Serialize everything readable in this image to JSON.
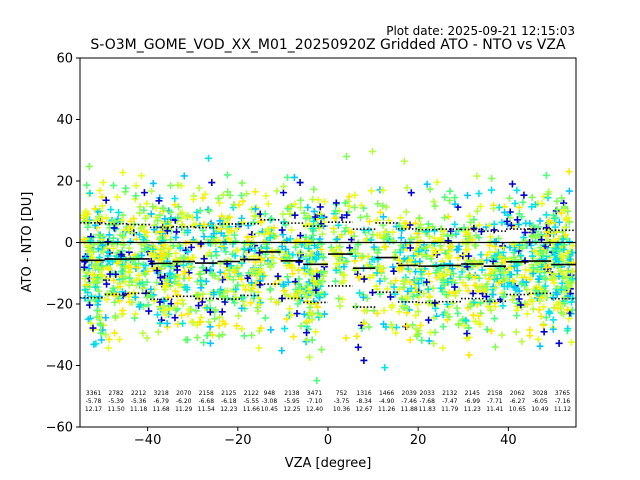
{
  "plot_date": "Plot date: 2025-09-21 12:15:03",
  "chart_data": {
    "type": "scatter",
    "title": "S-O3M_GOME_VOD_XX_M01_20250920Z Gridded ATO - NTO vs VZA",
    "xlabel": "VZA [degree]",
    "ylabel": "ATO - NTO [DU]",
    "xlim": [
      -55,
      55
    ],
    "ylim": [
      -60,
      60
    ],
    "xticks": [
      -40,
      -20,
      0,
      20,
      40
    ],
    "yticks": [
      -60,
      -40,
      -20,
      0,
      20,
      40,
      60
    ],
    "xtick_labels": [
      "−40",
      "−20",
      "0",
      "20",
      "40"
    ],
    "ytick_labels": [
      "−60",
      "−40",
      "−20",
      "0",
      "20",
      "40",
      "60"
    ],
    "marker": "+",
    "grid": false,
    "point_colors": [
      "#0000cd",
      "#00c8ff",
      "#00e5e5",
      "#4dff7a",
      "#7fff55",
      "#b6ff40",
      "#e5ff20",
      "#ffea00"
    ],
    "reference_line_y": 0,
    "bins": [
      {
        "vza": -52,
        "count": "3361",
        "mean": "-5.78",
        "std": "12.17"
      },
      {
        "vza": -47,
        "count": "2782",
        "mean": "-5.39",
        "std": "11.50"
      },
      {
        "vza": -42,
        "count": "2212",
        "mean": "-5.36",
        "std": "11.18"
      },
      {
        "vza": -37,
        "count": "3218",
        "mean": "-6.79",
        "std": "11.68"
      },
      {
        "vza": -32,
        "count": "2070",
        "mean": "-6.20",
        "std": "11.29"
      },
      {
        "vza": -27,
        "count": "2158",
        "mean": "-6.68",
        "std": "11.54"
      },
      {
        "vza": -22,
        "count": "2125",
        "mean": "-6.18",
        "std": "12.23"
      },
      {
        "vza": -17,
        "count": "2122",
        "mean": "-5.55",
        "std": "11.66"
      },
      {
        "vza": -13,
        "count": "948",
        "mean": "-3.08",
        "std": "10.45"
      },
      {
        "vza": -8,
        "count": "2138",
        "mean": "-5.95",
        "std": "12.25"
      },
      {
        "vza": -3,
        "count": "3471",
        "mean": "-7.10",
        "std": "12.40"
      },
      {
        "vza": 3,
        "count": "752",
        "mean": "-3.75",
        "std": "10.36"
      },
      {
        "vza": 8,
        "count": "1316",
        "mean": "-8.34",
        "std": "12.67"
      },
      {
        "vza": 13,
        "count": "1466",
        "mean": "-4.90",
        "std": "11.26"
      },
      {
        "vza": 18,
        "count": "2039",
        "mean": "-7.46",
        "std": "11.88"
      },
      {
        "vza": 22,
        "count": "2033",
        "mean": "-7.68",
        "std": "11.83"
      },
      {
        "vza": 27,
        "count": "2132",
        "mean": "-7.47",
        "std": "11.79"
      },
      {
        "vza": 32,
        "count": "2145",
        "mean": "-6.99",
        "std": "11.23"
      },
      {
        "vza": 37,
        "count": "2158",
        "mean": "-7.71",
        "std": "11.41"
      },
      {
        "vza": 42,
        "count": "2062",
        "mean": "-6.27",
        "std": "10.65"
      },
      {
        "vza": 47,
        "count": "3028",
        "mean": "-6.05",
        "std": "10.49"
      },
      {
        "vza": 52,
        "count": "3765",
        "mean": "-7.16",
        "std": "11.12"
      }
    ]
  }
}
